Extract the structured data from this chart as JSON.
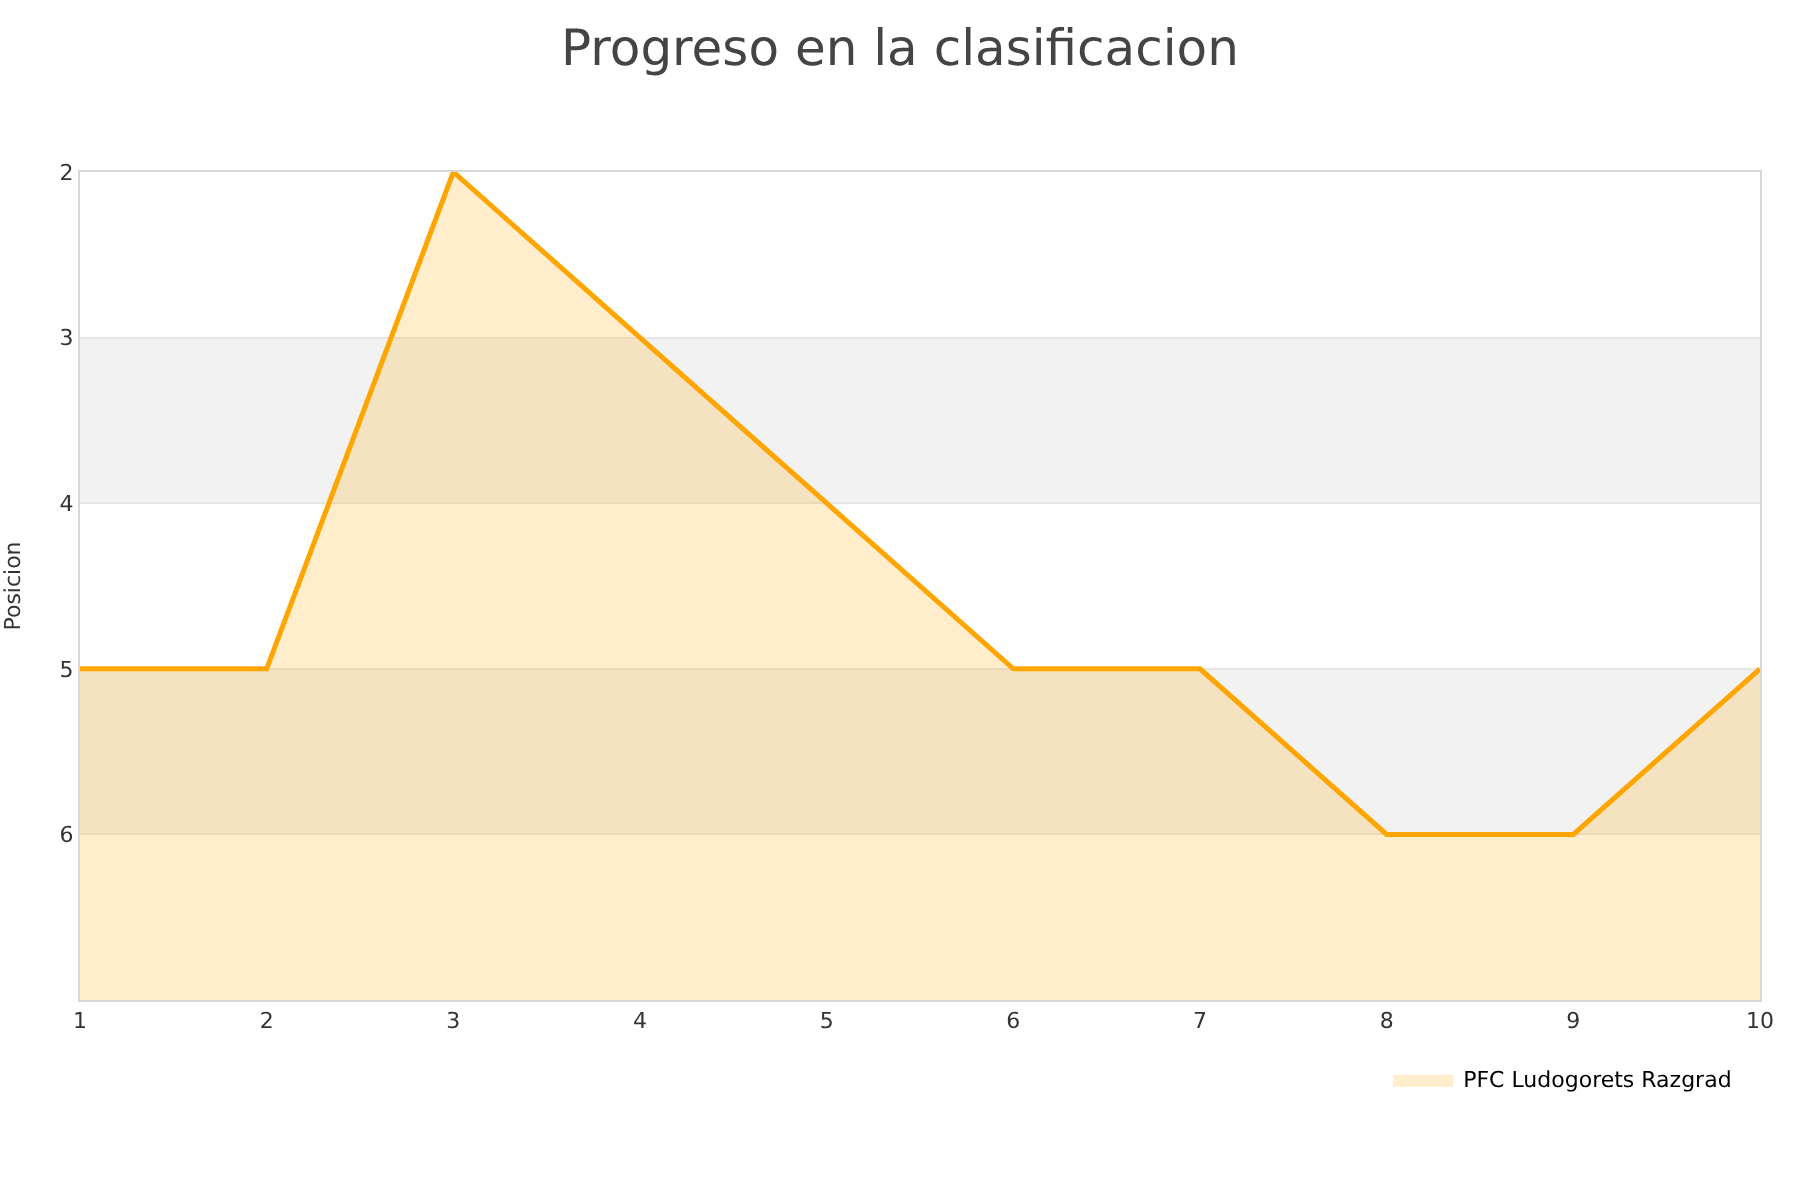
{
  "chart_data": {
    "type": "area",
    "title": "Progreso en la clasificacion",
    "ylabel": "Posicion",
    "x": [
      1,
      2,
      3,
      4,
      5,
      6,
      7,
      8,
      9,
      10
    ],
    "series": [
      {
        "name": "PFC Ludogorets Razgrad",
        "color": "#ffa500",
        "values": [
          5,
          5,
          2,
          3,
          4,
          5,
          5,
          6,
          6,
          5
        ]
      }
    ],
    "xlim": [
      1,
      10
    ],
    "xticks": [
      1,
      2,
      3,
      4,
      5,
      6,
      7,
      8,
      9,
      10
    ],
    "ylim": [
      7,
      2
    ],
    "yticks": [
      2,
      3,
      4,
      5,
      6
    ],
    "bands": [
      {
        "axis": "y",
        "from": 3,
        "to": 4,
        "color": "#f2f2f2"
      },
      {
        "axis": "y",
        "from": 5,
        "to": 6,
        "color": "#f2f2f2"
      }
    ],
    "grid": "y",
    "legend": "bottom right"
  }
}
